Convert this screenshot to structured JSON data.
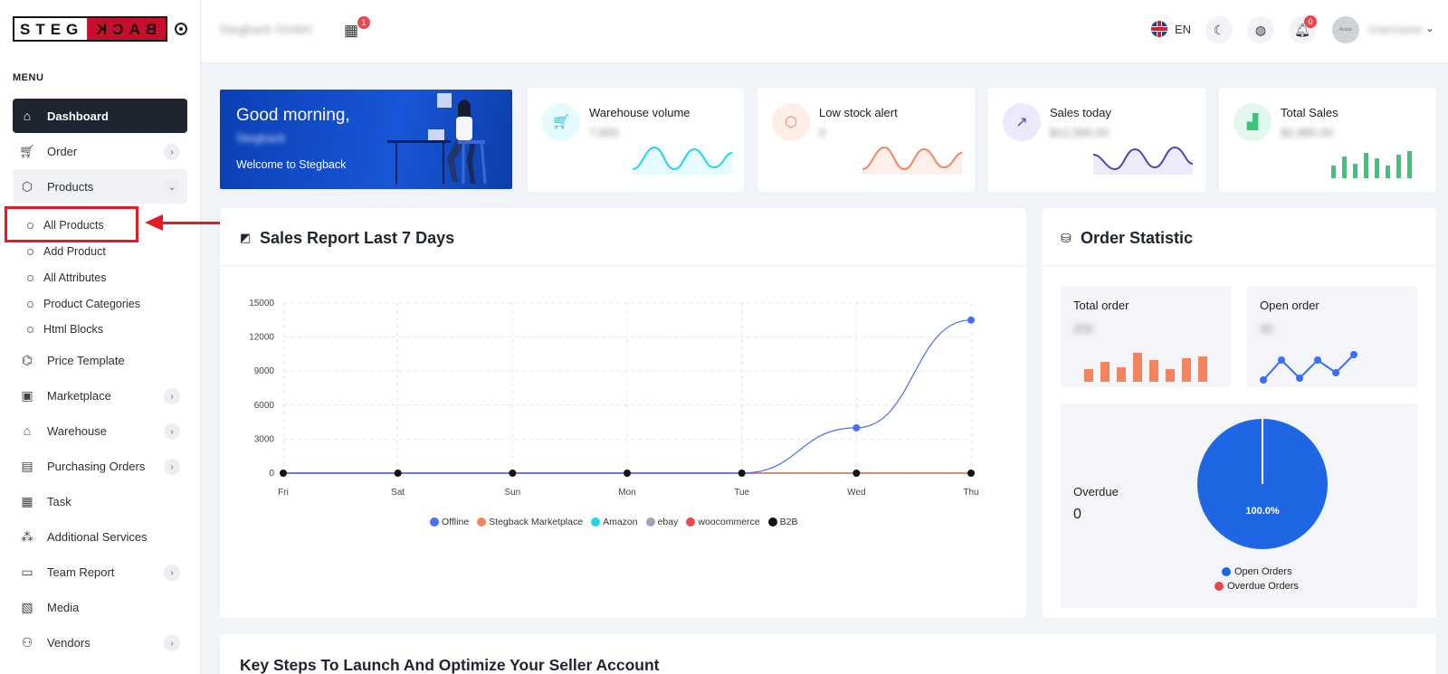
{
  "brand": {
    "left": "STEG",
    "right": "BACK"
  },
  "sidebar": {
    "menu_label": "MENU",
    "items": [
      {
        "label": "Dashboard",
        "icon": "home-icon"
      },
      {
        "label": "Order",
        "icon": "cart-icon"
      },
      {
        "label": "Products",
        "icon": "box-icon"
      },
      {
        "label": "Price Template",
        "icon": "tag-icon"
      },
      {
        "label": "Marketplace",
        "icon": "bag-icon"
      },
      {
        "label": "Warehouse",
        "icon": "warehouse-icon"
      },
      {
        "label": "Purchasing Orders",
        "icon": "ticket-icon"
      },
      {
        "label": "Task",
        "icon": "clipboard-icon"
      },
      {
        "label": "Additional Services",
        "icon": "network-icon"
      },
      {
        "label": "Team Report",
        "icon": "document-icon"
      },
      {
        "label": "Media",
        "icon": "image-icon"
      },
      {
        "label": "Vendors",
        "icon": "users-icon"
      }
    ],
    "product_subitems": [
      "All Products",
      "Add Product",
      "All Attributes",
      "Product Categories",
      "Html Blocks"
    ]
  },
  "topbar": {
    "store_name": "Stegback GmbH",
    "store_badge": "1",
    "language": "EN",
    "notifications": "0",
    "avatar_text": "Avatar",
    "user_name": "Username"
  },
  "welcome": {
    "greeting": "Good morning,",
    "user": "Stegback",
    "subtitle": "Welcome to Stegback"
  },
  "stats": [
    {
      "title": "Warehouse volume",
      "value": "7,650",
      "color": "#22d3ee"
    },
    {
      "title": "Low stock alert",
      "value": "0",
      "color": "#f4845f"
    },
    {
      "title": "Sales today",
      "value": "$12,580.00",
      "color": "#5b3fb8"
    },
    {
      "title": "Total Sales",
      "value": "$2,980.00",
      "color": "#3cc47c"
    }
  ],
  "sales_report": {
    "title": "Sales Report Last 7 Days"
  },
  "order_statistic": {
    "title": "Order Statistic",
    "total_order_label": "Total order",
    "total_order_value": "250",
    "open_order_label": "Open order",
    "open_order_value": "30",
    "overdue_label": "Overdue",
    "overdue_value": "0",
    "pie_label": "100.0%",
    "legend": [
      {
        "name": "Open Orders",
        "color": "#1f66e5"
      },
      {
        "name": "Overdue Orders",
        "color": "#e9474e"
      }
    ]
  },
  "key_steps": {
    "title": "Key Steps To Launch And Optimize Your Seller Account"
  },
  "chart_data": [
    {
      "type": "line",
      "categories": [
        "Fri",
        "Sat",
        "Sun",
        "Mon",
        "Tue",
        "Wed",
        "Thu"
      ],
      "ylim": [
        0,
        15000
      ],
      "yticks": [
        0,
        3000,
        6000,
        9000,
        12000,
        15000
      ],
      "grid": true,
      "legend_position": "bottom",
      "series": [
        {
          "name": "Offline",
          "color": "#4a6cf7",
          "values": [
            0,
            0,
            0,
            0,
            0,
            4000,
            13500
          ]
        },
        {
          "name": "Stegback Marketplace",
          "color": "#f4845f",
          "values": [
            0,
            0,
            0,
            0,
            0,
            0,
            0
          ]
        },
        {
          "name": "Amazon",
          "color": "#22d3ee",
          "values": [
            0,
            0,
            0,
            0,
            0,
            0,
            0
          ]
        },
        {
          "name": "ebay",
          "color": "#9aa5b8",
          "values": [
            0,
            0,
            0,
            0,
            0,
            0,
            0
          ]
        },
        {
          "name": "woocommerce",
          "color": "#e9474e",
          "values": [
            0,
            0,
            0,
            0,
            0,
            0,
            0
          ]
        },
        {
          "name": "B2B",
          "color": "#111111",
          "values": [
            0,
            0,
            0,
            0,
            0,
            0,
            0
          ]
        }
      ]
    },
    {
      "type": "pie",
      "labels": [
        "Open Orders",
        "Overdue Orders"
      ],
      "values": [
        100,
        0
      ],
      "colors": [
        "#1f66e5",
        "#e9474e"
      ]
    }
  ]
}
